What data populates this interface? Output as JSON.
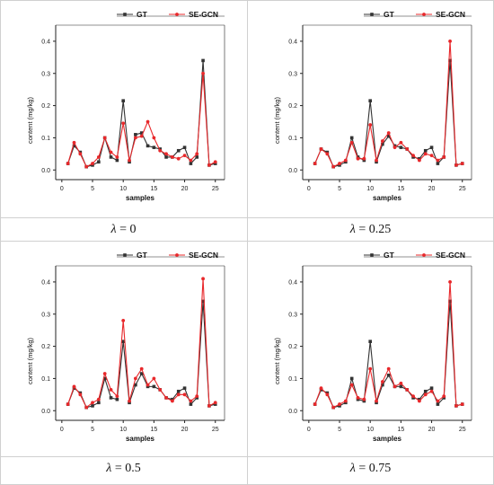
{
  "chart_data": [
    {
      "type": "line",
      "caption": {
        "symbol": "λ",
        "text": " = 0"
      },
      "xlabel": "samples",
      "ylabel": "content (mg/kg)",
      "xlim": [
        -1,
        26.5
      ],
      "ylim": [
        -0.03,
        0.45
      ],
      "xticks": [
        0,
        5,
        10,
        15,
        20,
        25
      ],
      "yticks": [
        0.0,
        0.1,
        0.2,
        0.3,
        0.4
      ],
      "ytick_labels": [
        "0.0",
        "0.1",
        "0.2",
        "0.3",
        "0.4"
      ],
      "legend": "top",
      "x": [
        1,
        2,
        3,
        4,
        5,
        6,
        7,
        8,
        9,
        10,
        11,
        12,
        13,
        14,
        15,
        16,
        17,
        18,
        19,
        20,
        21,
        22,
        23,
        24,
        25
      ],
      "series": [
        {
          "name": "GT",
          "color": "#333333",
          "marker": "square",
          "values": [
            0.02,
            0.075,
            0.055,
            0.01,
            0.015,
            0.025,
            0.1,
            0.04,
            0.03,
            0.215,
            0.025,
            0.11,
            0.115,
            0.075,
            0.07,
            0.065,
            0.04,
            0.04,
            0.06,
            0.07,
            0.02,
            0.04,
            0.34,
            0.015,
            0.02
          ]
        },
        {
          "name": "SE-GCN",
          "color": "#e8282b",
          "marker": "circle",
          "values": [
            0.02,
            0.085,
            0.05,
            0.01,
            0.02,
            0.04,
            0.1,
            0.055,
            0.04,
            0.145,
            0.03,
            0.1,
            0.105,
            0.15,
            0.1,
            0.06,
            0.05,
            0.04,
            0.035,
            0.045,
            0.03,
            0.05,
            0.3,
            0.015,
            0.025
          ]
        }
      ]
    },
    {
      "type": "line",
      "caption": {
        "symbol": "λ",
        "text": " = 0.25"
      },
      "xlabel": "samples",
      "ylabel": "content (mg/kg)",
      "xlim": [
        -1,
        26.5
      ],
      "ylim": [
        -0.03,
        0.45
      ],
      "xticks": [
        0,
        5,
        10,
        15,
        20,
        25
      ],
      "yticks": [
        0.0,
        0.1,
        0.2,
        0.3,
        0.4
      ],
      "ytick_labels": [
        "0.0",
        "0.1",
        "0.2",
        "0.3",
        "0.4"
      ],
      "legend": "top",
      "x": [
        1,
        2,
        3,
        4,
        5,
        6,
        7,
        8,
        9,
        10,
        11,
        12,
        13,
        14,
        15,
        16,
        17,
        18,
        19,
        20,
        21,
        22,
        23,
        24,
        25
      ],
      "series": [
        {
          "name": "GT",
          "color": "#333333",
          "marker": "square",
          "values": [
            0.02,
            0.065,
            0.055,
            0.01,
            0.015,
            0.025,
            0.1,
            0.04,
            0.03,
            0.215,
            0.025,
            0.08,
            0.105,
            0.075,
            0.07,
            0.065,
            0.04,
            0.035,
            0.06,
            0.07,
            0.02,
            0.04,
            0.34,
            0.015,
            0.02
          ]
        },
        {
          "name": "SE-GCN",
          "color": "#e8282b",
          "marker": "circle",
          "values": [
            0.02,
            0.065,
            0.05,
            0.01,
            0.02,
            0.03,
            0.085,
            0.035,
            0.035,
            0.14,
            0.03,
            0.09,
            0.115,
            0.07,
            0.085,
            0.065,
            0.045,
            0.03,
            0.05,
            0.045,
            0.03,
            0.04,
            0.4,
            0.015,
            0.02
          ]
        }
      ]
    },
    {
      "type": "line",
      "caption": {
        "symbol": "λ",
        "text": " = 0.5"
      },
      "xlabel": "samples",
      "ylabel": "content (mg/kg)",
      "xlim": [
        -1,
        26.5
      ],
      "ylim": [
        -0.03,
        0.45
      ],
      "xticks": [
        0,
        5,
        10,
        15,
        20,
        25
      ],
      "yticks": [
        0.0,
        0.1,
        0.2,
        0.3,
        0.4
      ],
      "ytick_labels": [
        "0.0",
        "0.1",
        "0.2",
        "0.3",
        "0.4"
      ],
      "legend": "top",
      "x": [
        1,
        2,
        3,
        4,
        5,
        6,
        7,
        8,
        9,
        10,
        11,
        12,
        13,
        14,
        15,
        16,
        17,
        18,
        19,
        20,
        21,
        22,
        23,
        24,
        25
      ],
      "series": [
        {
          "name": "GT",
          "color": "#333333",
          "marker": "square",
          "values": [
            0.02,
            0.07,
            0.055,
            0.01,
            0.015,
            0.025,
            0.1,
            0.04,
            0.035,
            0.215,
            0.025,
            0.08,
            0.115,
            0.075,
            0.075,
            0.065,
            0.04,
            0.035,
            0.06,
            0.07,
            0.02,
            0.04,
            0.34,
            0.015,
            0.02
          ]
        },
        {
          "name": "SE-GCN",
          "color": "#e8282b",
          "marker": "circle",
          "values": [
            0.02,
            0.075,
            0.05,
            0.01,
            0.025,
            0.035,
            0.115,
            0.065,
            0.045,
            0.28,
            0.03,
            0.1,
            0.13,
            0.08,
            0.1,
            0.065,
            0.04,
            0.03,
            0.05,
            0.05,
            0.03,
            0.045,
            0.41,
            0.015,
            0.025
          ]
        }
      ]
    },
    {
      "type": "line",
      "caption": {
        "symbol": "λ",
        "text": " = 0.75"
      },
      "xlabel": "samples",
      "ylabel": "content (mg/kg)",
      "xlim": [
        -1,
        26.5
      ],
      "ylim": [
        -0.03,
        0.45
      ],
      "xticks": [
        0,
        5,
        10,
        15,
        20,
        25
      ],
      "yticks": [
        0.0,
        0.1,
        0.2,
        0.3,
        0.4
      ],
      "ytick_labels": [
        "0.0",
        "0.1",
        "0.2",
        "0.3",
        "0.4"
      ],
      "legend": "top",
      "x": [
        1,
        2,
        3,
        4,
        5,
        6,
        7,
        8,
        9,
        10,
        11,
        12,
        13,
        14,
        15,
        16,
        17,
        18,
        19,
        20,
        21,
        22,
        23,
        24,
        25
      ],
      "series": [
        {
          "name": "GT",
          "color": "#333333",
          "marker": "square",
          "values": [
            0.02,
            0.065,
            0.055,
            0.01,
            0.015,
            0.025,
            0.1,
            0.035,
            0.03,
            0.215,
            0.025,
            0.08,
            0.11,
            0.075,
            0.075,
            0.065,
            0.04,
            0.035,
            0.06,
            0.07,
            0.02,
            0.04,
            0.34,
            0.015,
            0.02
          ]
        },
        {
          "name": "SE-GCN",
          "color": "#e8282b",
          "marker": "circle",
          "values": [
            0.02,
            0.07,
            0.05,
            0.01,
            0.02,
            0.03,
            0.08,
            0.04,
            0.035,
            0.13,
            0.03,
            0.09,
            0.13,
            0.075,
            0.085,
            0.065,
            0.045,
            0.03,
            0.05,
            0.06,
            0.03,
            0.045,
            0.4,
            0.015,
            0.02
          ]
        }
      ]
    }
  ]
}
